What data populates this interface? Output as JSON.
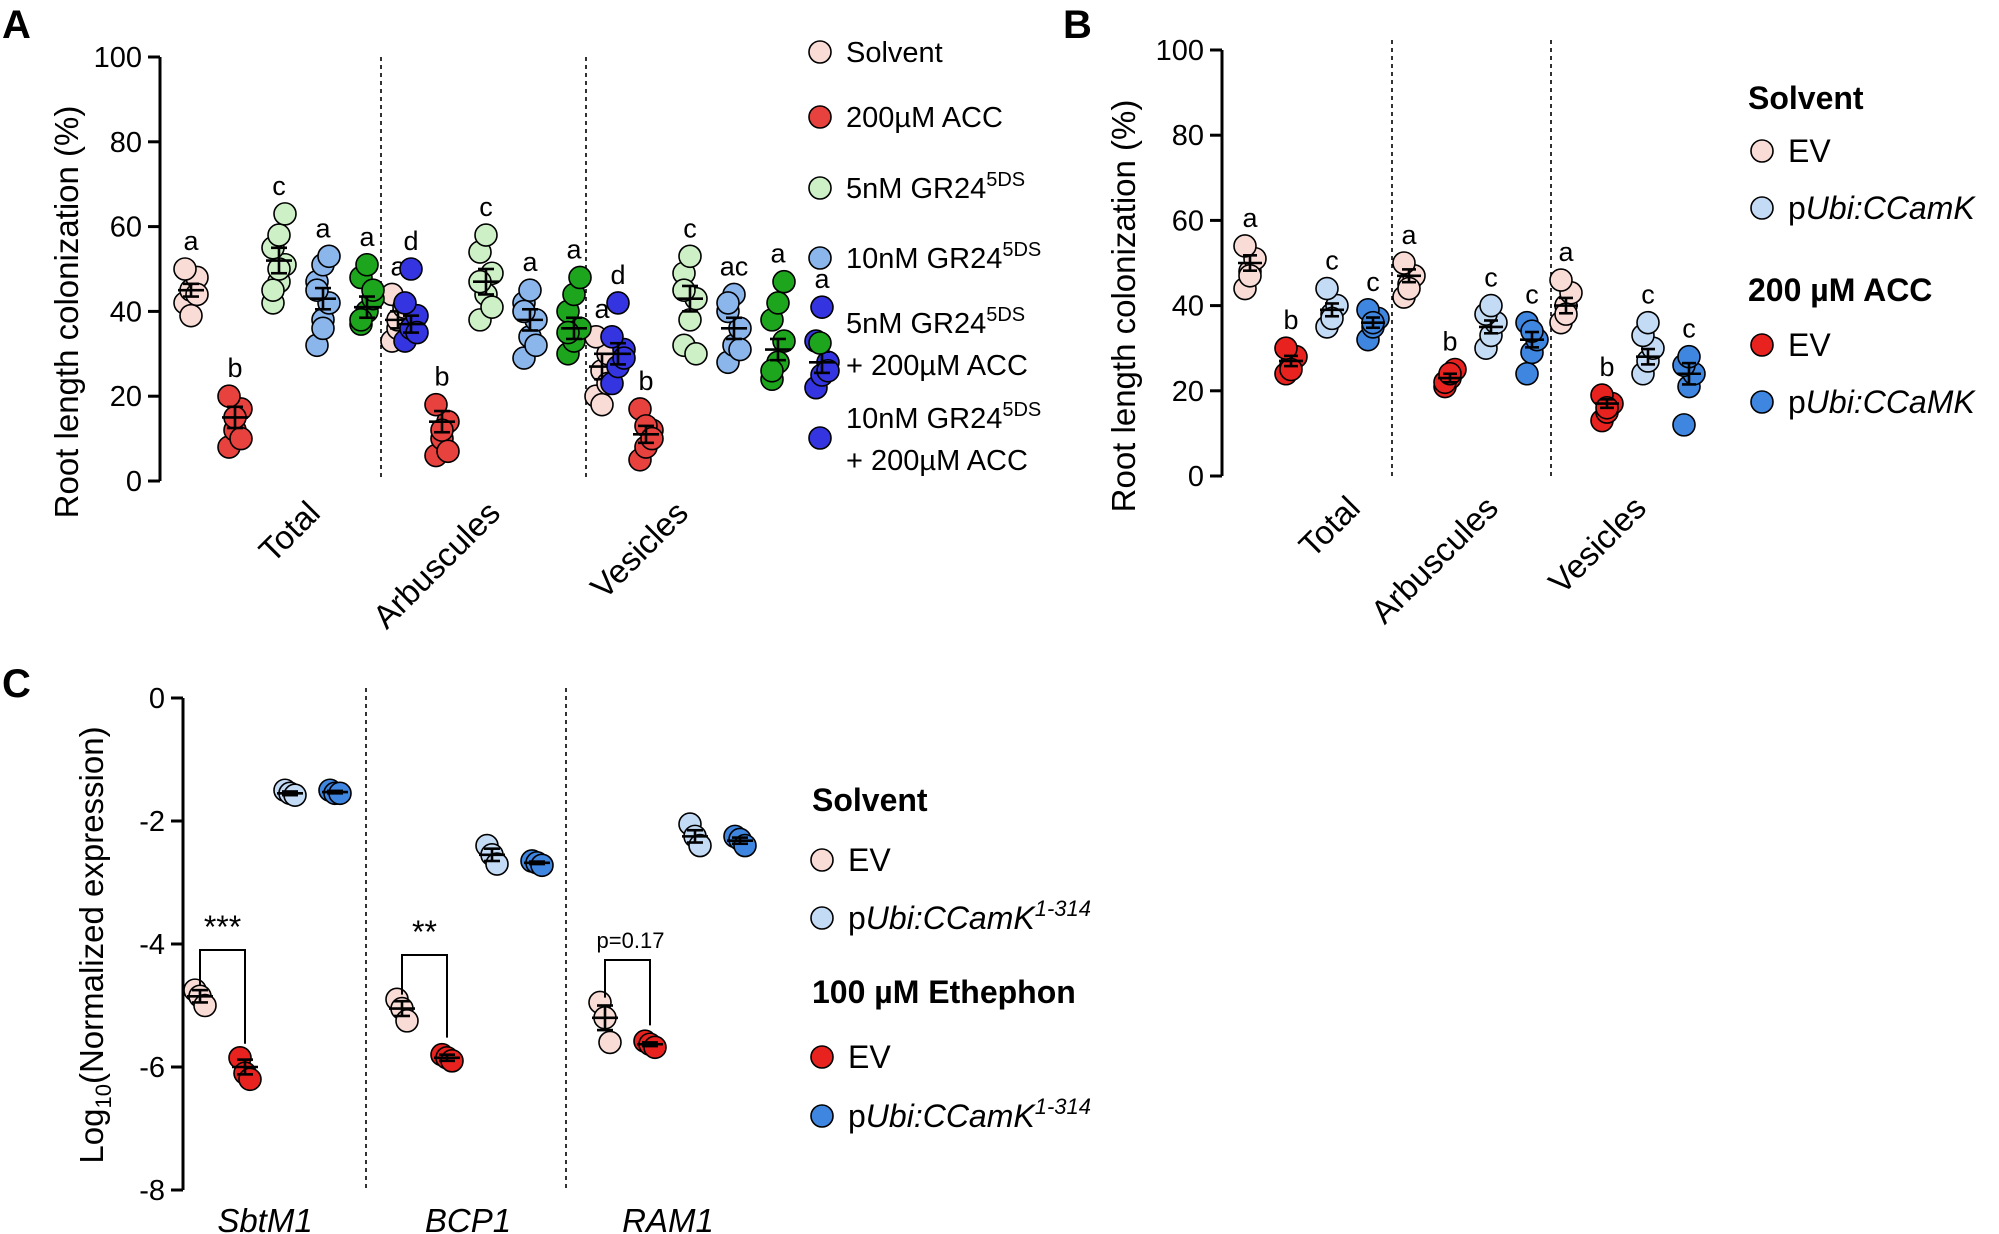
{
  "chart_data": [
    {
      "panel": "A",
      "type": "scatter",
      "ylabel": "Root length colonization (%)",
      "ylim": [
        0,
        100
      ],
      "yticks": [
        "0",
        "20",
        "40",
        "60",
        "80",
        "100"
      ],
      "categories": [
        "Total",
        "Arbuscules",
        "Vesicles"
      ],
      "series": [
        {
          "name": "Solvent",
          "color": "#f9dcd6",
          "points": [
            [
              42,
              45,
              48,
              50,
              39,
              44
            ],
            [
              33,
              36,
              40,
              44,
              38,
              41
            ],
            [
              20,
              26,
              30,
              34,
              18,
              23
            ]
          ],
          "mean": [
            45,
            38,
            27
          ],
          "sem": [
            1.5,
            2,
            3
          ],
          "letters": [
            "a",
            "a",
            "a"
          ]
        },
        {
          "name": "200µM ACC",
          "color": "#e8423f",
          "points": [
            [
              8,
              12,
              17,
              20,
              15,
              10
            ],
            [
              6,
              10,
              14,
              18,
              12,
              7
            ],
            [
              5,
              8,
              12,
              17,
              13,
              10
            ]
          ],
          "mean": [
            15,
            14,
            11
          ],
          "sem": [
            2.5,
            2.5,
            2
          ],
          "letters": [
            "b",
            "b",
            "b"
          ]
        },
        {
          "name": "5nM GR24",
          "sup": "5DS",
          "color": "#cdf0c6",
          "points": [
            [
              42,
              47,
              51,
              55,
              58,
              63,
              45,
              50
            ],
            [
              38,
              44,
              49,
              54,
              58,
              41,
              47
            ],
            [
              32,
              38,
              43,
              49,
              53,
              30,
              45
            ]
          ],
          "mean": [
            52,
            47,
            43
          ],
          "sem": [
            3,
            3,
            3
          ],
          "letters": [
            "c",
            "c",
            "c"
          ]
        },
        {
          "name": "10nM GR24",
          "sup": "5DS",
          "color": "#8ab6ec",
          "points": [
            [
              32,
              38,
              42,
              47,
              51,
              53,
              45,
              36
            ],
            [
              29,
              34,
              38,
              42,
              45,
              32,
              40
            ],
            [
              28,
              32,
              36,
              40,
              44,
              31,
              42
            ]
          ],
          "mean": [
            43,
            38,
            36
          ],
          "sem": [
            2.5,
            2.5,
            2.5
          ],
          "letters": [
            "a",
            "a",
            "ac"
          ]
        },
        {
          "name": "5nM GR24",
          "sup": "5DS",
          "name2": "+ 200µM ACC",
          "color": "#1ea51e",
          "points": [
            [
              37,
              40,
              43,
              48,
              51,
              45,
              38
            ],
            [
              30,
              33,
              36,
              40,
              44,
              48,
              35
            ],
            [
              24,
              28,
              33,
              38,
              42,
              47,
              26
            ]
          ],
          "mean": [
            41,
            36,
            31
          ],
          "sem": [
            2.5,
            2.5,
            2.5
          ],
          "letters": [
            "a",
            "a",
            "a"
          ]
        },
        {
          "name": "10nM GR24",
          "sup": "5DS",
          "name2": "+ 200µM ACC",
          "color": "#3435e0",
          "points": [
            [
              33,
              36,
              39,
              42,
              50,
              35
            ],
            [
              23,
              27,
              31,
              34,
              42,
              29
            ],
            [
              22,
              25,
              28,
              33,
              41,
              26
            ]
          ],
          "mean": [
            37,
            30,
            28
          ],
          "sem": [
            2,
            2.5,
            2.5
          ],
          "letters": [
            "d",
            "d",
            "a"
          ]
        }
      ]
    },
    {
      "panel": "B",
      "type": "scatter",
      "ylabel": "Root length colonization (%)",
      "ylim": [
        0,
        100
      ],
      "yticks": [
        "0",
        "20",
        "40",
        "60",
        "80",
        "100"
      ],
      "categories": [
        "Total",
        "Arbuscules",
        "Vesicles"
      ],
      "series": [
        {
          "name": "EV",
          "group": "Solvent",
          "color": "#f9dcd6",
          "points": [
            [
              44,
              48,
              51,
              54,
              47
            ],
            [
              42,
              45,
              47,
              50,
              44
            ],
            [
              36,
              40,
              43,
              46,
              38
            ]
          ],
          "mean": [
            50,
            47,
            40
          ],
          "sem": [
            1.8,
            1.5,
            1.8
          ],
          "letters": [
            "a",
            "a",
            "a"
          ]
        },
        {
          "name": "EV",
          "group": "200 µM ACC",
          "color": "#e8231f",
          "points": [
            [
              24,
              26,
              28,
              30,
              25
            ],
            [
              21,
              23,
              25,
              22,
              24
            ],
            [
              13,
              15,
              17,
              19,
              16
            ]
          ],
          "mean": [
            27,
            23,
            17
          ],
          "sem": [
            1.2,
            1,
            1
          ],
          "letters": [
            "b",
            "b",
            "b"
          ]
        },
        {
          "name": "pUbi:CCamK",
          "group": "Solvent",
          "color": "#c4dbf5",
          "points": [
            [
              35,
              38,
              40,
              44,
              37
            ],
            [
              30,
              33,
              36,
              38,
              40
            ],
            [
              24,
              27,
              30,
              33,
              36
            ]
          ],
          "mean": [
            39,
            35,
            28
          ],
          "sem": [
            1.5,
            1.5,
            1.8
          ],
          "letters": [
            "c",
            "c",
            "c"
          ]
        },
        {
          "name": "pUbi:CCaMK",
          "group": "200 µM ACC",
          "color": "#3f86e0",
          "points": [
            [
              32,
              35,
              37,
              39,
              36
            ],
            [
              24,
              29,
              32,
              36,
              34
            ],
            [
              12,
              21,
              24,
              26,
              28
            ]
          ],
          "mean": [
            36,
            32,
            24
          ],
          "sem": [
            1.2,
            1.8,
            2.5
          ],
          "letters": [
            "c",
            "c",
            "c"
          ]
        }
      ]
    },
    {
      "panel": "C",
      "type": "scatter",
      "ylabel": "Log10(Normalized expression)",
      "ylim": [
        -8,
        0
      ],
      "yticks": [
        "0",
        "-2",
        "-4",
        "-6",
        "-8"
      ],
      "categories": [
        "SbtM1",
        "BCP1",
        "RAM1"
      ],
      "series": [
        {
          "name": "EV",
          "group": "Solvent",
          "color": "#f9dcd6",
          "points": [
            [
              -4.75,
              -4.85,
              -5.0
            ],
            [
              -4.9,
              -5.05,
              -5.25
            ],
            [
              -4.95,
              -5.2,
              -5.6
            ]
          ],
          "mean": [
            -4.85,
            -5.05,
            -5.2
          ],
          "sem": [
            0.1,
            0.12,
            0.2
          ]
        },
        {
          "name": "EV",
          "group": "100 µM Ethephon",
          "color": "#e8231f",
          "points": [
            [
              -5.85,
              -6.1,
              -6.2
            ],
            [
              -5.8,
              -5.85,
              -5.9
            ],
            [
              -5.58,
              -5.63,
              -5.68
            ]
          ],
          "mean": [
            -6.0,
            -5.85,
            -5.63
          ],
          "sem": [
            0.12,
            0.05,
            0.03
          ]
        },
        {
          "name": "pUbi:CCamK1-314",
          "group": "Solvent",
          "color": "#c4dbf5",
          "points": [
            [
              -1.5,
              -1.55,
              -1.58
            ],
            [
              -2.4,
              -2.55,
              -2.7
            ],
            [
              -2.05,
              -2.25,
              -2.4
            ]
          ],
          "mean": [
            -1.55,
            -2.55,
            -2.25
          ],
          "sem": [
            0.03,
            0.1,
            0.1
          ]
        },
        {
          "name": "pUbi:CCamK1-314",
          "group": "100 µM Ethephon",
          "color": "#3f86e0",
          "points": [
            [
              -1.5,
              -1.55,
              -1.55
            ],
            [
              -2.65,
              -2.68,
              -2.72
            ],
            [
              -2.25,
              -2.3,
              -2.4
            ]
          ],
          "mean": [
            -1.53,
            -2.68,
            -2.32
          ],
          "sem": [
            0.02,
            0.02,
            0.05
          ]
        }
      ],
      "significance": [
        "***",
        "**",
        "p=0.17"
      ]
    }
  ],
  "panels": {
    "a": "A",
    "b": "B",
    "c": "C"
  },
  "legend_a": {
    "i1": "Solvent",
    "i2": "200µM ACC",
    "i3": "5nM GR24",
    "i3sup": "5DS",
    "i4": "10nM GR24",
    "i4sup": "5DS",
    "i5": "5nM GR24",
    "i5sup": "5DS",
    "i5b": "+ 200µM ACC",
    "i6": "10nM GR24",
    "i6sup": "5DS",
    "i6b": "+ 200µM ACC"
  },
  "legend_b": {
    "head1": "Solvent",
    "ev1": "EV",
    "ubi_p1": "p",
    "ubi_i1": "Ubi:CCamK",
    "head2": "200 µM ACC",
    "ev2": "EV",
    "ubi_p2": "p",
    "ubi_i2": "Ubi:CCaMK"
  },
  "legend_c": {
    "head1": "Solvent",
    "ev1": "EV",
    "ubi_p1": "p",
    "ubi_i1": "Ubi:CCamK",
    "ubi_s1": "1-314",
    "head2": "100 µM Ethephon",
    "ev2": "EV",
    "ubi_p2": "p",
    "ubi_i2": "Ubi:CCamK",
    "ubi_s2": "1-314"
  },
  "ylabel_c": {
    "pre": "Log",
    "sub": "10",
    "post": "(Normalized expression)"
  }
}
